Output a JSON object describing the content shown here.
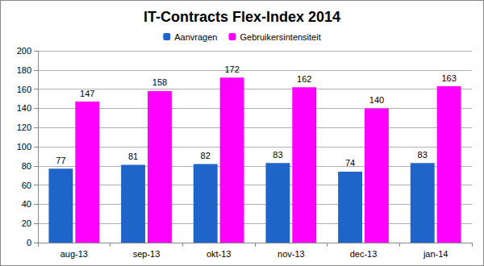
{
  "chart_data": {
    "type": "bar",
    "title": "IT-Contracts Flex-Index 2014",
    "categories": [
      "aug-13",
      "sep-13",
      "okt-13",
      "nov-13",
      "dec-13",
      "jan-14"
    ],
    "series": [
      {
        "name": "Aanvragen",
        "color": "#1f64c8",
        "values": [
          77,
          81,
          82,
          83,
          74,
          83
        ]
      },
      {
        "name": "Gebruikersintensiteit",
        "color": "#ff00ff",
        "values": [
          147,
          158,
          172,
          162,
          140,
          163
        ]
      }
    ],
    "ylim": [
      0,
      200
    ],
    "yticks": [
      0,
      20,
      40,
      60,
      80,
      100,
      120,
      140,
      160,
      180,
      200
    ],
    "grid": true,
    "legend": "top",
    "data_labels": true
  }
}
